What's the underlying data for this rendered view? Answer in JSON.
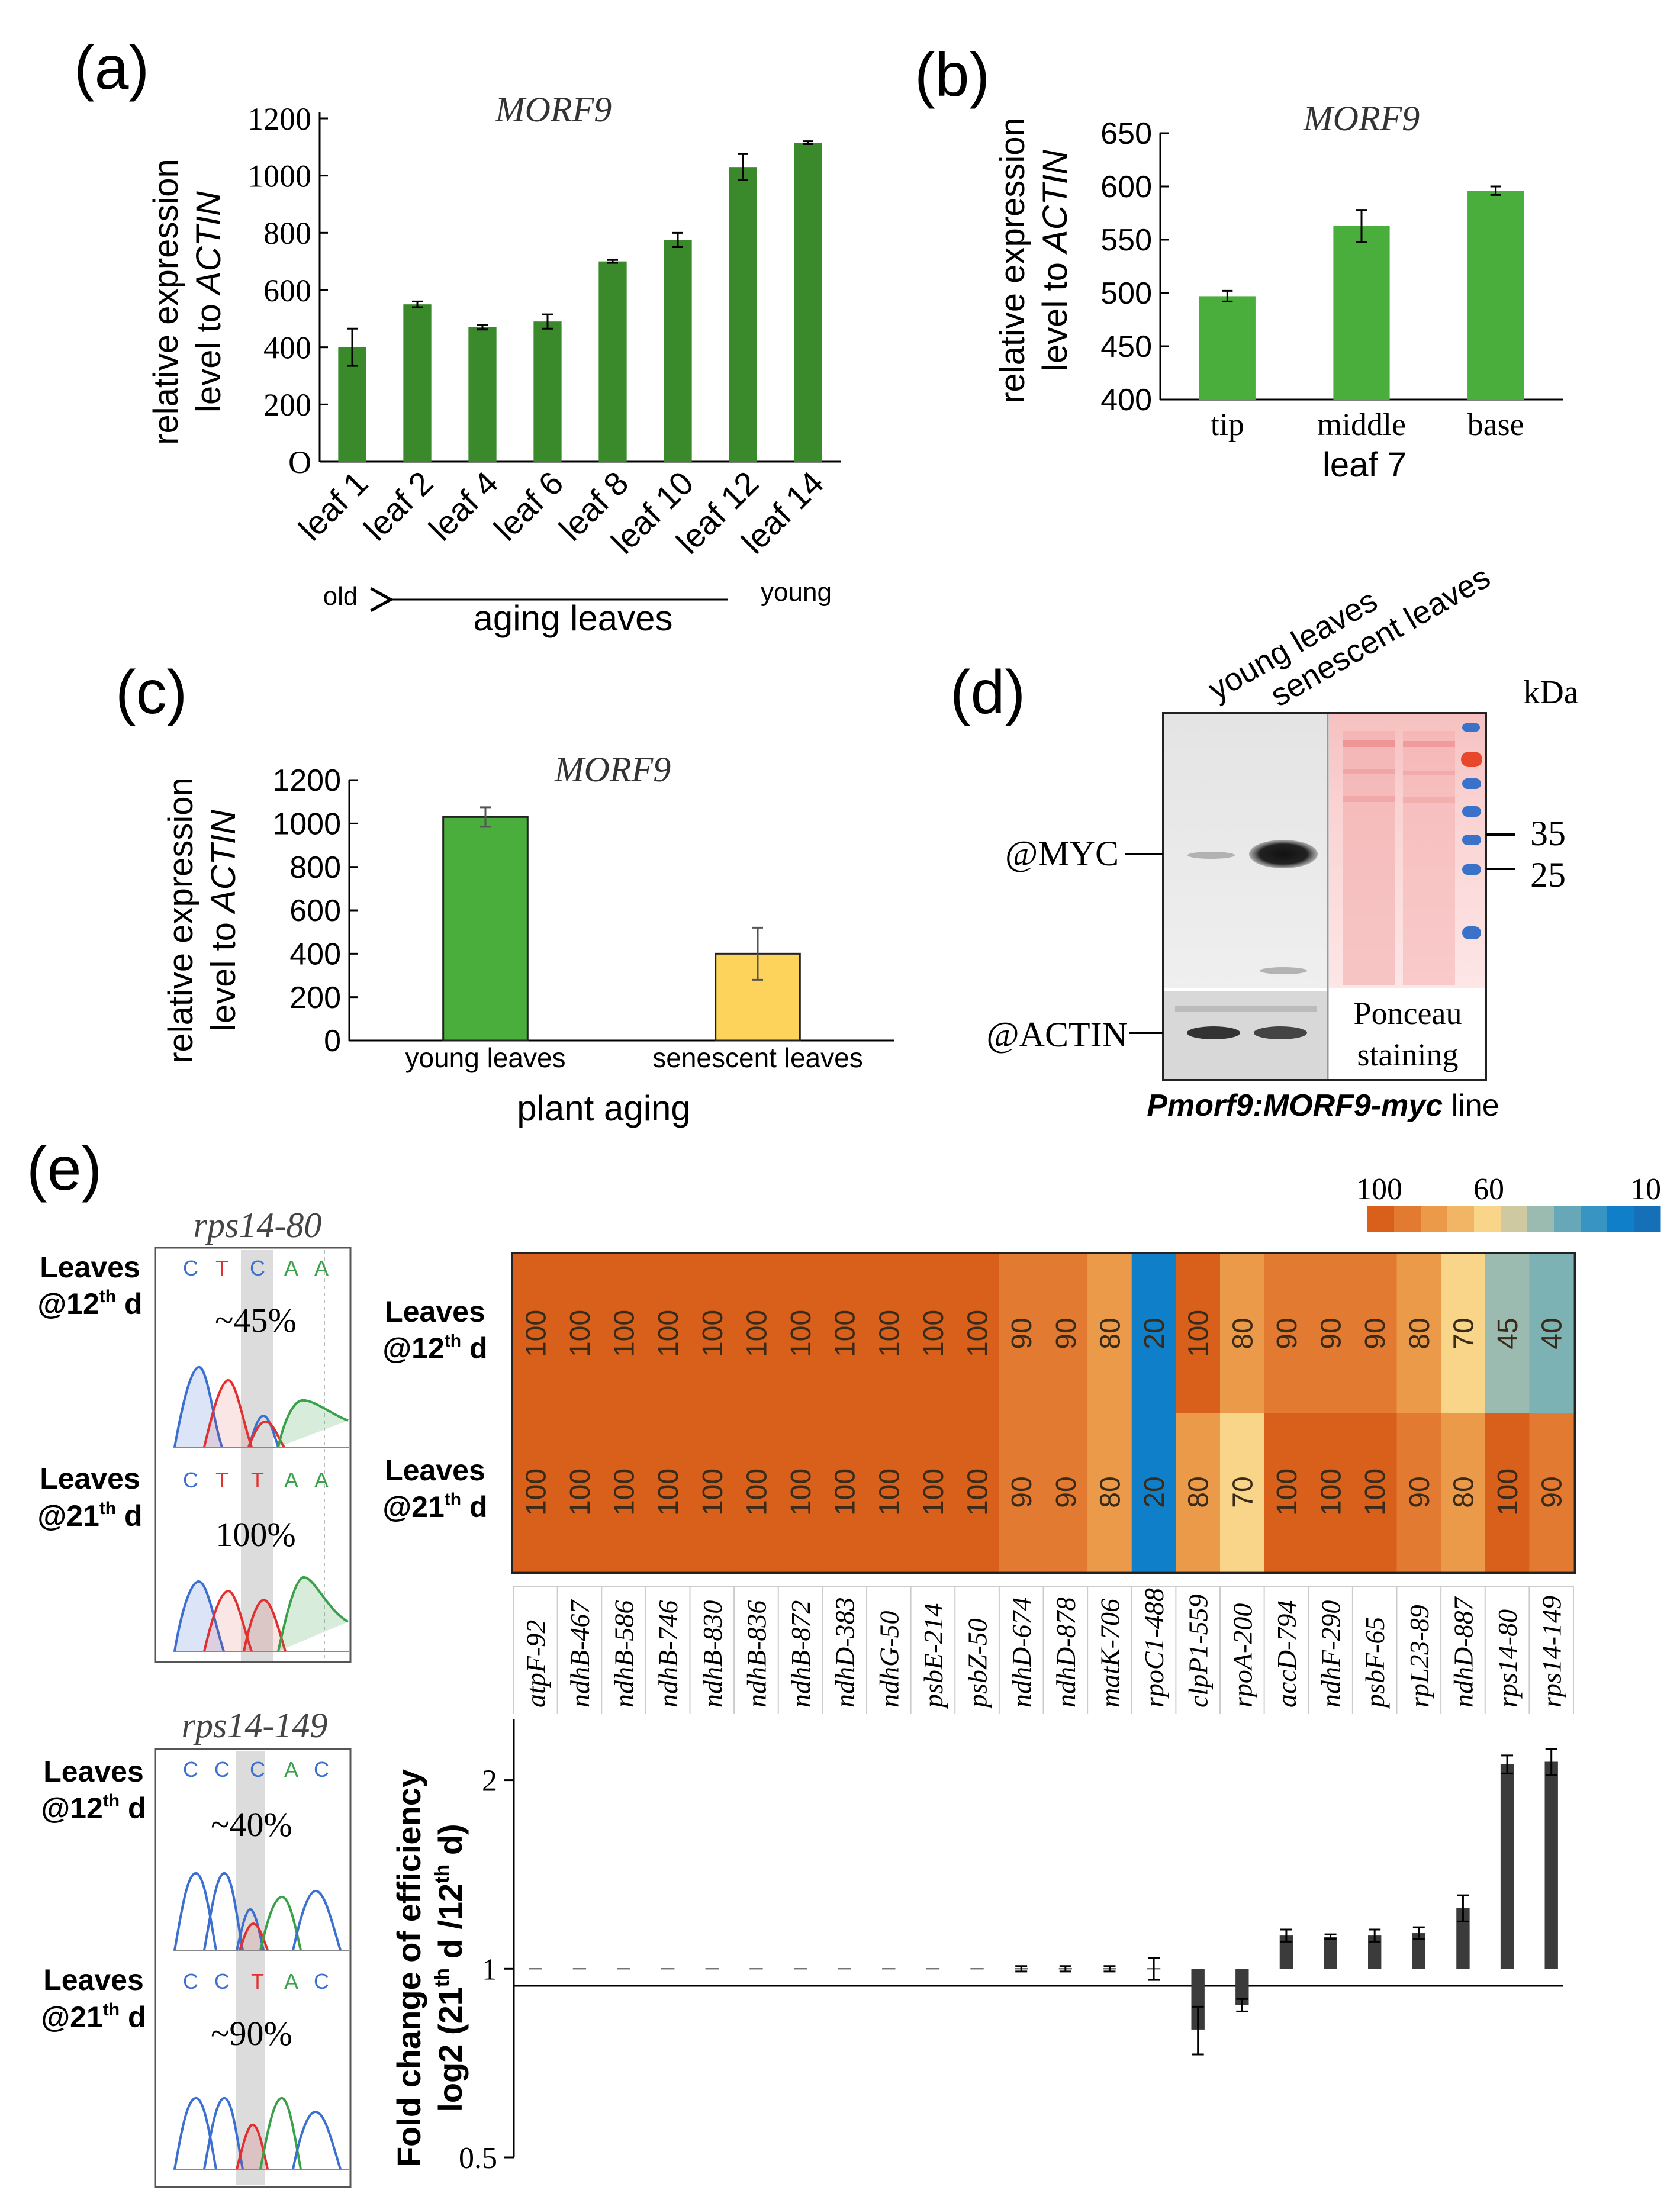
{
  "panel_labels": {
    "a": "(a)",
    "b": "(b)",
    "c": "(c)",
    "d": "(d)",
    "e": "(e)"
  },
  "chart_data": [
    {
      "id": "a",
      "type": "bar",
      "title": "MORF9",
      "ylabel_line1": "relative expression",
      "ylabel_line2_pre": "level to ",
      "ylabel_line2_em": "ACTIN",
      "categories": [
        "leaf 1",
        "leaf 2",
        "leaf 4",
        "leaf 6",
        "leaf 8",
        "leaf 10",
        "leaf 12",
        "leaf 14"
      ],
      "values": [
        400,
        550,
        470,
        490,
        700,
        775,
        1030,
        1115
      ],
      "errors": [
        65,
        10,
        8,
        25,
        5,
        25,
        45,
        5
      ],
      "ylim": [
        0,
        1200
      ],
      "yticks": [
        0,
        200,
        400,
        600,
        800,
        1000,
        1200
      ],
      "ytick_labels": [
        "O",
        "200",
        "400",
        "600",
        "800",
        "1000",
        "1200"
      ],
      "color": "#3a8a2c",
      "arrow": {
        "left_label": "old",
        "right_label": "young",
        "xlabel": "aging leaves"
      }
    },
    {
      "id": "b",
      "type": "bar",
      "title": "MORF9",
      "ylabel_line1": "relative expression",
      "ylabel_line2_pre": "level to ",
      "ylabel_line2_em": "ACTIN",
      "categories": [
        "tip",
        "middle",
        "base"
      ],
      "values": [
        497,
        563,
        596
      ],
      "errors": [
        5,
        15,
        4
      ],
      "ylim": [
        400,
        650
      ],
      "yticks": [
        400,
        450,
        500,
        550,
        600,
        650
      ],
      "ytick_labels": [
        "400",
        "450",
        "500",
        "550",
        "600",
        "650"
      ],
      "xlabel": "leaf 7",
      "color": "#4aae3c"
    },
    {
      "id": "c",
      "type": "bar",
      "title": "MORF9",
      "ylabel_line1": "relative expression",
      "ylabel_line2_pre": "level to ",
      "ylabel_line2_em": "ACTIN",
      "categories": [
        "young leaves",
        "senescent leaves"
      ],
      "values": [
        1030,
        400
      ],
      "errors": [
        45,
        120
      ],
      "colors": [
        "#4aae3c",
        "#fdd35b"
      ],
      "ylim": [
        0,
        1200
      ],
      "yticks": [
        0,
        200,
        400,
        600,
        800,
        1000,
        1200
      ],
      "ytick_labels": [
        "0",
        "200",
        "400",
        "600",
        "800",
        "1000",
        "1200"
      ],
      "xlabel": "plant aging"
    },
    {
      "id": "e-heatmap",
      "type": "heatmap",
      "colorbar_labels": [
        "100",
        "60",
        "10"
      ],
      "colorbar_colors": [
        "#d8601b",
        "#e27a32",
        "#eb9a49",
        "#f2b465",
        "#f8d589",
        "#cfc9a2",
        "#9cbbb0",
        "#67a8b8",
        "#3894c2",
        "#0e7fc8",
        "#1570b8"
      ],
      "rows": [
        {
          "label_line1": "Leaves",
          "label_num": "@12",
          "label_sup": "th",
          "label_end": " d"
        },
        {
          "label_line1": "Leaves",
          "label_num": "@21",
          "label_sup": "th",
          "label_end": " d"
        }
      ],
      "columns": [
        "atpF-92",
        "ndhB-467",
        "ndhB-586",
        "ndhB-746",
        "ndhB-830",
        "ndhB-836",
        "ndhB-872",
        "ndhD-383",
        "ndhG-50",
        "psbE-214",
        "psbZ-50",
        "ndhD-674",
        "ndhD-878",
        "matK-706",
        "rpoC1-488",
        "clpP1-559",
        "rpoA-200",
        "accD-794",
        "ndhF-290",
        "psbF-65",
        "rpL23-89",
        "ndhD-887",
        "rps14-80",
        "rps14-149"
      ],
      "values": [
        [
          100,
          100,
          100,
          100,
          100,
          100,
          100,
          100,
          100,
          100,
          100,
          90,
          90,
          80,
          20,
          100,
          80,
          90,
          90,
          90,
          80,
          70,
          45,
          40
        ],
        [
          100,
          100,
          100,
          100,
          100,
          100,
          100,
          100,
          100,
          100,
          100,
          90,
          90,
          80,
          20,
          80,
          70,
          100,
          100,
          100,
          90,
          80,
          100,
          90
        ]
      ]
    },
    {
      "id": "e-bar",
      "type": "bar",
      "ylabel_line1": "Fold change of efficiency",
      "ylabel_line2_pre": "log2 (21",
      "ylabel_sup1": "th",
      "ylabel_mid": " d /12",
      "ylabel_sup2": "th",
      "ylabel_end": " d)",
      "categories": [
        "atpF-92",
        "ndhB-467",
        "ndhB-586",
        "ndhB-746",
        "ndhB-830",
        "ndhB-836",
        "ndhB-872",
        "ndhD-383",
        "ndhG-50",
        "psbE-214",
        "psbZ-50",
        "ndhD-674",
        "ndhD-878",
        "matK-706",
        "rpoC1-488",
        "clpP1-559",
        "rpoA-200",
        "accD-794",
        "ndhF-290",
        "psbF-65",
        "rpL23-89",
        "ndhD-887",
        "rps14-80",
        "rps14-149"
      ],
      "values": [
        1,
        1,
        1,
        1,
        1,
        1,
        1,
        1,
        1,
        1,
        1,
        1.0,
        1.0,
        1.0,
        1.0,
        0.8,
        0.875,
        1.13,
        1.125,
        1.13,
        1.14,
        1.25,
        2.12,
        2.14
      ],
      "errors": [
        0,
        0,
        0,
        0,
        0,
        0,
        0,
        0,
        0,
        0,
        0,
        0.01,
        0.01,
        0.01,
        0.04,
        0.07,
        0.02,
        0.025,
        0.01,
        0.025,
        0.025,
        0.06,
        0.07,
        0.1
      ],
      "ylim": [
        0.5,
        2.5
      ],
      "yticks": [
        0.5,
        1,
        2
      ],
      "ytick_labels": [
        "0.5",
        "1",
        "2"
      ],
      "color": "#3b3b3b"
    }
  ],
  "blot": {
    "header_young": "young leaves",
    "header_senescent": "senescent leaves",
    "kda": "kDa",
    "marker_35": "35",
    "marker_25": "25",
    "myc_label": "@MYC",
    "actin_label": "@ACTIN",
    "ponceau_line1": "Ponceau",
    "ponceau_line2": "staining",
    "line_em": "Pmorf9:MORF9-myc",
    "line_suffix": " line"
  },
  "chromatograms": [
    {
      "title": "rps14-80",
      "traces": [
        {
          "row_label": "Leaves",
          "num": "@12",
          "sup": "th",
          "end": " d",
          "bases": [
            "C",
            "T",
            "C",
            "A",
            "A"
          ],
          "percent": "~45%"
        },
        {
          "row_label": "Leaves",
          "num": "@21",
          "sup": "th",
          "end": " d",
          "bases": [
            "C",
            "T",
            "T",
            "A",
            "A"
          ],
          "percent": "100%"
        }
      ]
    },
    {
      "title": "rps14-149",
      "traces": [
        {
          "row_label": "Leaves",
          "num": "@12",
          "sup": "th",
          "end": " d",
          "bases": [
            "C",
            "C",
            "C",
            "A",
            "C"
          ],
          "percent": "~40%"
        },
        {
          "row_label": "Leaves",
          "num": "@21",
          "sup": "th",
          "end": " d",
          "bases": [
            "C",
            "C",
            "T",
            "A",
            "C"
          ],
          "percent": "~90%"
        }
      ]
    }
  ]
}
